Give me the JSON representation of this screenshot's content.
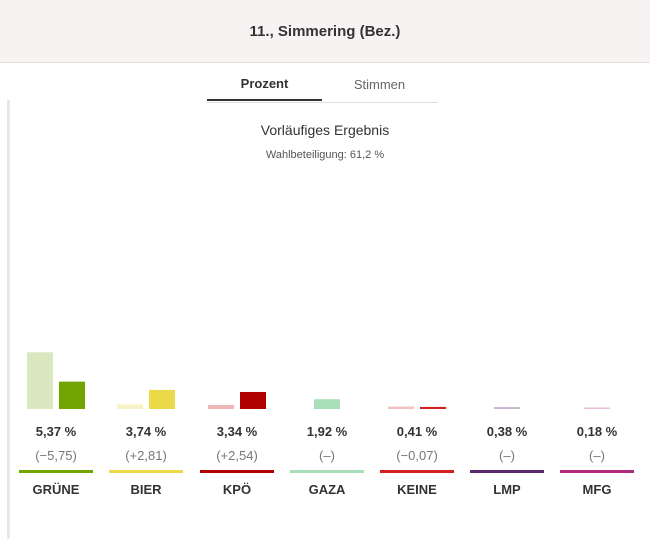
{
  "header": {
    "title": "11., Simmering (Bez.)"
  },
  "tabs": [
    {
      "label": "Prozent"
    },
    {
      "label": "Stimmen"
    }
  ],
  "subtitle": "Vorläufiges Ergebnis",
  "turnout": "Wahlbeteiligung: 61,2 %",
  "chart_data": {
    "type": "bar",
    "categories": [
      "GRÜNE",
      "BIER",
      "KPÖ",
      "GAZA",
      "KEINE",
      "LMP",
      "MFG"
    ],
    "series": [
      {
        "values": [
          11.12,
          0.93,
          0.8,
          null,
          0.48,
          null,
          null
        ]
      },
      {
        "values": [
          5.37,
          3.74,
          3.34,
          1.92,
          0.41,
          0.38,
          0.18
        ]
      }
    ],
    "value_labels": [
      "5,37 %",
      "3,74 %",
      "3,34 %",
      "1,92 %",
      "0,41 %",
      "0,38 %",
      "0,18 %"
    ],
    "diff_labels": [
      "(−5,75)",
      "(+2,81)",
      "(+2,54)",
      "(–)",
      "(−0,07)",
      "(–)",
      "(–)"
    ],
    "colors": [
      "#72a500",
      "#ecd94a",
      "#b10000",
      "#a8dfb9",
      "#d42020",
      "#5a2a6e",
      "#b02a7a"
    ],
    "previous_colors": [
      "#d9e8bf",
      "#f8f2c8",
      "#eeb8b8",
      "#a8dfb9",
      "#f3c1c1",
      "#c9b6d0",
      "#e9bcd8"
    ]
  }
}
